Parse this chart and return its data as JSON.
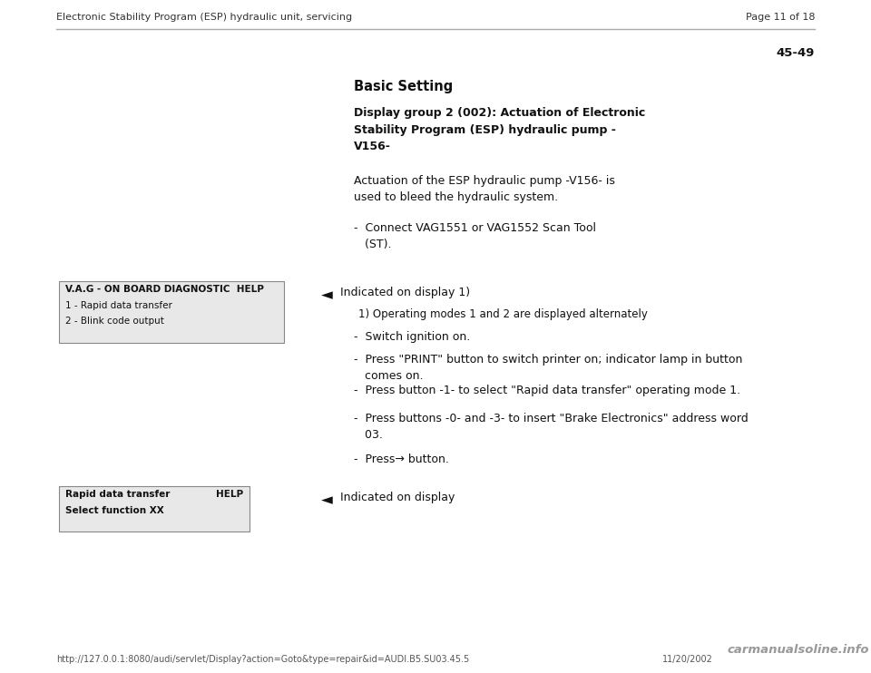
{
  "bg_color": "#ffffff",
  "header_left": "Electronic Stability Program (ESP) hydraulic unit, servicing",
  "header_right": "Page 11 of 18",
  "page_num": "45-49",
  "title": "Basic Setting",
  "section_title": "Display group 2 (002): Actuation of Electronic\nStability Program (ESP) hydraulic pump -\nV156-",
  "intro_text": "Actuation of the ESP hydraulic pump -V156- is\nused to bleed the hydraulic system.",
  "bullet_connect": "-  Connect VAG1551 or VAG1552 Scan Tool\n   (ST).",
  "arrow1_label": "Indicated on display 1)",
  "footnote": "1) Operating modes 1 and 2 are displayed alternately",
  "bullets_main": [
    "-  Switch ignition on.",
    "-  Press \"PRINT\" button to switch printer on; indicator lamp in button\n   comes on.",
    "-  Press button -1- to select \"Rapid data transfer\" operating mode 1.",
    "-  Press buttons -0- and -3- to insert \"Brake Electronics\" address word\n   03.",
    "-  Press→ button."
  ],
  "bullet_spacings": [
    0,
    32,
    46,
    32,
    46
  ],
  "arrow2_label": "Indicated on display",
  "box1_line0": "V.A.G - ON BOARD DIAGNOSTIC  HELP",
  "box1_line1": "1 - Rapid data transfer",
  "box1_line2": "2 - Blink code output",
  "box2_line0_left": "Rapid data transfer",
  "box2_line0_right": "HELP",
  "box2_line1": "Select function XX",
  "footer_url": "http://127.0.0.1:8080/audi/servlet/Display?action=Goto&type=repair&id=AUDI.B5.SU03.45.5",
  "footer_date": "11/20/2002",
  "footer_watermark": "carmanualsoline.info",
  "header_line_color": "#aaaaaa",
  "box_bg": "#e8e8e8",
  "box_edge": "#888888",
  "text_color": "#111111",
  "text_color_light": "#555555",
  "text_color_header": "#333333",
  "watermark_color": "#999999"
}
